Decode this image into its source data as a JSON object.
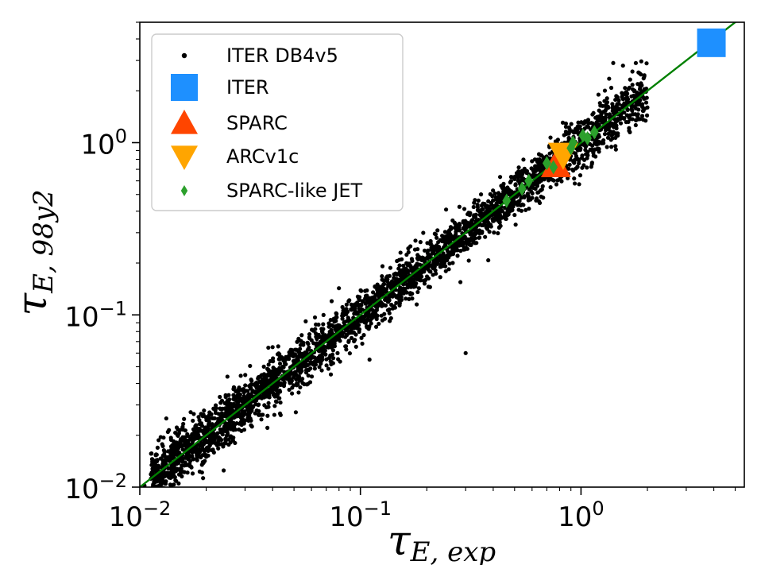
{
  "chart_data": {
    "type": "scatter",
    "xscale": "log",
    "yscale": "log",
    "xlim": [
      0.01,
      5.5
    ],
    "ylim": [
      0.01,
      5.0
    ],
    "grid": false,
    "legend_position": "top-left",
    "xlabel": {
      "symbol": "τ",
      "subscript": "E, exp"
    },
    "ylabel": {
      "symbol": "τ",
      "subscript": "E, 98y2"
    },
    "x_ticks": [
      {
        "value": 0.01,
        "base": "10",
        "exp": "−2"
      },
      {
        "value": 0.1,
        "base": "10",
        "exp": "−1"
      },
      {
        "value": 1,
        "base": "10",
        "exp": "0"
      }
    ],
    "y_ticks": [
      {
        "value": 0.01,
        "base": "10",
        "exp": "−2"
      },
      {
        "value": 0.1,
        "base": "10",
        "exp": "−1"
      },
      {
        "value": 1,
        "base": "10",
        "exp": "0"
      }
    ],
    "reference_line": {
      "name": "",
      "x": [
        0.01,
        5.5
      ],
      "y": [
        0.01,
        5.5
      ],
      "color": "#008000"
    },
    "series": [
      {
        "name": "ITER DB4v5",
        "marker": "dot",
        "color": "#000000",
        "cloud": {
          "count": 3200,
          "log10_x_range": [
            -1.95,
            0.3
          ],
          "y_equals_x_scatter_log10_sd": 0.06,
          "points": [
            [
              0.0105,
              0.0102
            ],
            [
              0.012,
              0.0108
            ],
            [
              0.0135,
              0.0115
            ],
            [
              0.015,
              0.0105
            ],
            [
              0.0145,
              0.0125
            ],
            [
              0.024,
              0.0125
            ],
            [
              0.02,
              0.015
            ],
            [
              0.022,
              0.018
            ],
            [
              0.04,
              0.065
            ],
            [
              0.11,
              0.055
            ],
            [
              0.18,
              0.115
            ],
            [
              0.3,
              0.06
            ],
            [
              0.3,
              0.31
            ],
            [
              0.5,
              0.38
            ],
            [
              1.4,
              2.9
            ],
            [
              1.55,
              2.8
            ],
            [
              2.0,
              1.6
            ],
            [
              1.2,
              1.9
            ]
          ]
        }
      },
      {
        "name": "ITER",
        "marker": "square",
        "color": "#1e90ff",
        "points": [
          [
            3.9,
            3.8
          ]
        ]
      },
      {
        "name": "SPARC",
        "marker": "triangle-up",
        "color": "#ff4500",
        "points": [
          [
            0.77,
            0.74
          ]
        ]
      },
      {
        "name": "ARCv1c",
        "marker": "triangle-down",
        "color": "#ffa500",
        "points": [
          [
            0.83,
            0.85
          ]
        ]
      },
      {
        "name": "SPARC-like JET",
        "marker": "diamond",
        "color": "#2ca02c",
        "points": [
          [
            0.46,
            0.46
          ],
          [
            0.54,
            0.54
          ],
          [
            0.58,
            0.6
          ],
          [
            0.7,
            0.76
          ],
          [
            0.75,
            0.72
          ],
          [
            0.9,
            0.93
          ],
          [
            0.92,
            1.0
          ],
          [
            1.02,
            1.1
          ],
          [
            1.07,
            1.06
          ],
          [
            1.15,
            1.15
          ]
        ]
      }
    ]
  }
}
